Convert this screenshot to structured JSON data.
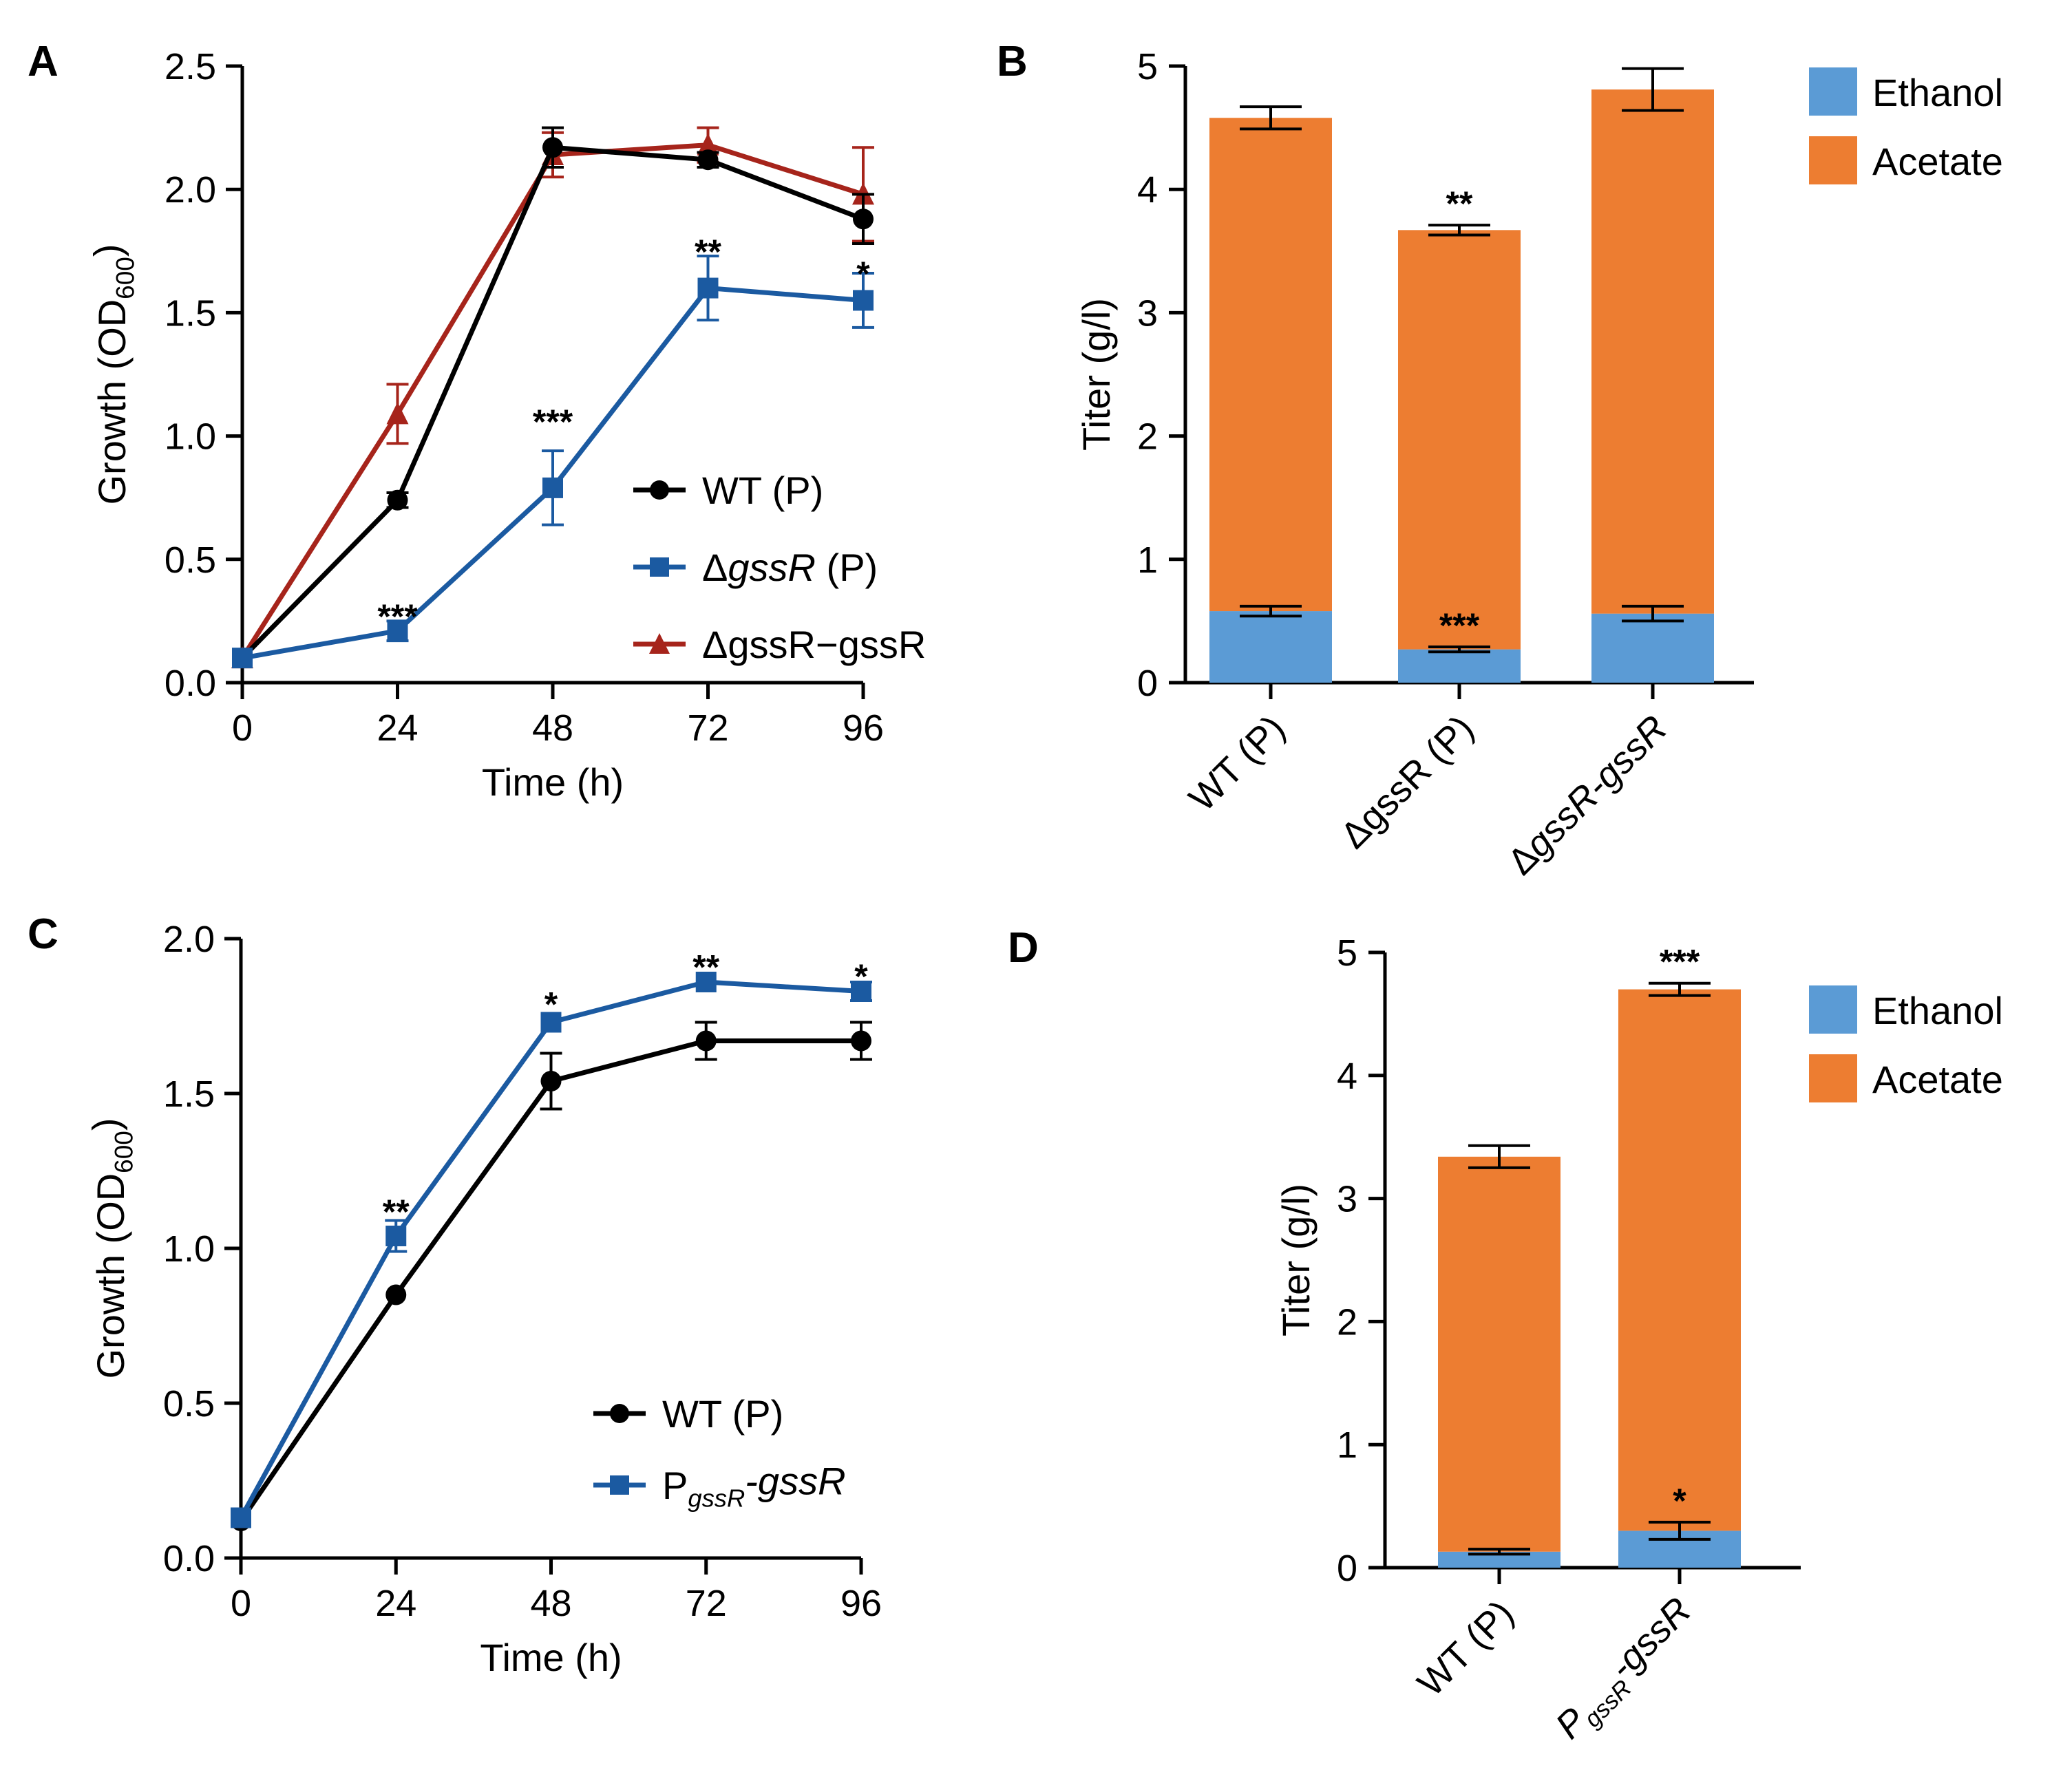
{
  "chart_data": [
    {
      "panel": "A",
      "type": "line",
      "xlabel": "Time (h)",
      "ylabel": "Growth (OD600)",
      "ylabel_main": "Growth (OD",
      "ylabel_sub": "600",
      "ylabel_end": ")",
      "xlim": [
        0,
        96
      ],
      "ylim": [
        0,
        2.5
      ],
      "xticks": [
        0,
        24,
        48,
        72,
        96
      ],
      "yticks": [
        0,
        0.5,
        1.0,
        1.5,
        2.0,
        2.5
      ],
      "ytick_labels": [
        "0.0",
        "0.5",
        "1.0",
        "1.5",
        "2.0",
        "2.5"
      ],
      "series": [
        {
          "name": "ΔgssR−gssR",
          "legend_parts": [
            [
              "Δ",
              "n"
            ],
            [
              "gssR−gssR",
              "n"
            ]
          ],
          "color": "#a6241b",
          "marker": "triangle",
          "x": [
            0,
            24,
            48,
            72,
            96
          ],
          "y": [
            0.1,
            1.09,
            2.14,
            2.18,
            1.98
          ],
          "err": [
            0.02,
            0.12,
            0.09,
            0.07,
            0.19
          ]
        },
        {
          "name": "WT (P)",
          "legend_parts": [
            [
              "WT (P)",
              "n"
            ]
          ],
          "color": "#000000",
          "marker": "circle",
          "x": [
            0,
            24,
            48,
            72,
            96
          ],
          "y": [
            0.1,
            0.74,
            2.17,
            2.12,
            1.88
          ],
          "err": [
            0.02,
            0.03,
            0.08,
            0.03,
            0.1
          ]
        },
        {
          "name": "ΔgssR (P)",
          "legend_parts": [
            [
              "Δ",
              "n"
            ],
            [
              "gssR",
              "i"
            ],
            [
              " (P)",
              "n"
            ]
          ],
          "color": "#1b5aa1",
          "marker": "square",
          "x": [
            0,
            24,
            48,
            72,
            96
          ],
          "y": [
            0.1,
            0.21,
            0.79,
            1.6,
            1.55
          ],
          "err": [
            0.02,
            0.04,
            0.15,
            0.13,
            0.11
          ]
        }
      ],
      "annotations": [
        {
          "x": 24,
          "y": 0.27,
          "text": "***"
        },
        {
          "x": 48,
          "y": 1.06,
          "text": "***"
        },
        {
          "x": 72,
          "y": 1.75,
          "text": "**"
        },
        {
          "x": 96,
          "y": 1.66,
          "text": "*"
        }
      ],
      "legend_position": "bottom-right"
    },
    {
      "panel": "B",
      "type": "bar",
      "stacked": true,
      "ylabel": "Titer (g/l)",
      "ylim": [
        0,
        5
      ],
      "yticks": [
        0,
        1,
        2,
        3,
        4,
        5
      ],
      "categories": [
        "WT (P)",
        "ΔgssR (P)",
        "ΔgssR-gssR"
      ],
      "category_parts": [
        [
          [
            "WT (P)",
            "n"
          ]
        ],
        [
          [
            "Δ",
            "n"
          ],
          [
            "gssR (P)",
            "n"
          ]
        ],
        [
          [
            "Δ",
            "n"
          ],
          [
            "gssR-gssR",
            "i"
          ]
        ]
      ],
      "series": [
        {
          "name": "Ethanol",
          "color": "#5b9bd5",
          "values": [
            0.58,
            0.27,
            0.56
          ],
          "err": [
            0.04,
            0.02,
            0.06
          ]
        },
        {
          "name": "Acetate",
          "color": "#ed7d31",
          "values": [
            4.0,
            3.4,
            4.25
          ],
          "totals": [
            4.58,
            3.67,
            4.81
          ],
          "err": [
            0.09,
            0.04,
            0.17
          ]
        }
      ],
      "annotations": [
        {
          "category": 1,
          "series": "Acetate",
          "text": "**"
        },
        {
          "category": 1,
          "series": "Ethanol",
          "text": "***"
        }
      ],
      "legend_position": "top-right"
    },
    {
      "panel": "C",
      "type": "line",
      "xlabel": "Time (h)",
      "ylabel": "Growth (OD600)",
      "ylabel_main": "Growth (OD",
      "ylabel_sub": "600",
      "ylabel_end": ")",
      "xlim": [
        0,
        96
      ],
      "ylim": [
        0,
        2.0
      ],
      "xticks": [
        0,
        24,
        48,
        72,
        96
      ],
      "yticks": [
        0,
        0.5,
        1.0,
        1.5,
        2.0
      ],
      "ytick_labels": [
        "0.0",
        "0.5",
        "1.0",
        "1.5",
        "2.0"
      ],
      "series": [
        {
          "name": "WT (P)",
          "legend_parts": [
            [
              "WT (P)",
              "n"
            ]
          ],
          "color": "#000000",
          "marker": "circle",
          "x": [
            0,
            24,
            48,
            72,
            96
          ],
          "y": [
            0.12,
            0.85,
            1.54,
            1.67,
            1.67
          ],
          "err": [
            0.02,
            0.02,
            0.09,
            0.06,
            0.06
          ]
        },
        {
          "name": "PgssR-gssR",
          "legend_parts": [
            [
              "P",
              "n"
            ],
            [
              "gssR",
              "sub"
            ],
            [
              "-gssR",
              "i"
            ]
          ],
          "color": "#1b5aa1",
          "marker": "square",
          "x": [
            0,
            24,
            48,
            72,
            96
          ],
          "y": [
            0.13,
            1.04,
            1.73,
            1.86,
            1.83
          ],
          "err": [
            0.02,
            0.05,
            0.02,
            0.02,
            0.03
          ]
        }
      ],
      "annotations": [
        {
          "x": 24,
          "y": 1.12,
          "text": "**"
        },
        {
          "x": 48,
          "y": 1.79,
          "text": "*"
        },
        {
          "x": 72,
          "y": 1.91,
          "text": "**"
        },
        {
          "x": 96,
          "y": 1.88,
          "text": "*"
        }
      ],
      "legend_position": "bottom-right"
    },
    {
      "panel": "D",
      "type": "bar",
      "stacked": true,
      "ylabel": "Titer (g/l)",
      "ylim": [
        0,
        5
      ],
      "yticks": [
        0,
        1,
        2,
        3,
        4,
        5
      ],
      "categories": [
        "WT (P)",
        "PgssR-gssR"
      ],
      "category_parts": [
        [
          [
            "WT (P)",
            "n"
          ]
        ],
        [
          [
            "P",
            "i"
          ],
          [
            "gssR",
            "sub"
          ],
          [
            "-gssR",
            "i"
          ]
        ]
      ],
      "series": [
        {
          "name": "Ethanol",
          "color": "#5b9bd5",
          "values": [
            0.13,
            0.3
          ],
          "err": [
            0.02,
            0.07
          ]
        },
        {
          "name": "Acetate",
          "color": "#ed7d31",
          "values": [
            3.21,
            4.4
          ],
          "totals": [
            3.34,
            4.7
          ],
          "err": [
            0.09,
            0.05
          ]
        }
      ],
      "annotations": [
        {
          "category": 1,
          "series": "Acetate",
          "text": "***"
        },
        {
          "category": 1,
          "series": "Ethanol",
          "text": "*"
        }
      ],
      "legend_position": "top-right"
    }
  ]
}
